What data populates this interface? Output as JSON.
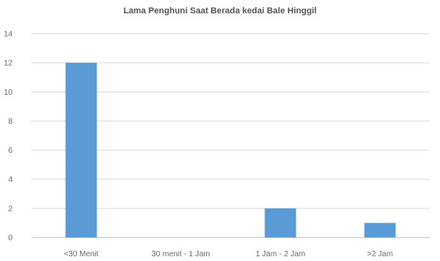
{
  "chart_data": {
    "type": "bar",
    "title": "Lama Penghuni Saat Berada kedai Bale Hinggil",
    "categories": [
      "<30 Menit",
      "30 menit - 1 Jam",
      "1 Jam - 2 Jam",
      ">2 Jam"
    ],
    "values": [
      12,
      0,
      2,
      1
    ],
    "xlabel": "",
    "ylabel": "",
    "ylim": [
      0,
      14
    ],
    "yticks": [
      0,
      2,
      4,
      6,
      8,
      10,
      12,
      14
    ],
    "grid": true,
    "legend": "none",
    "colors": {
      "bar": "#5b9bd5",
      "grid": "#d9d9d9",
      "axis": "#bfbfbf"
    }
  }
}
